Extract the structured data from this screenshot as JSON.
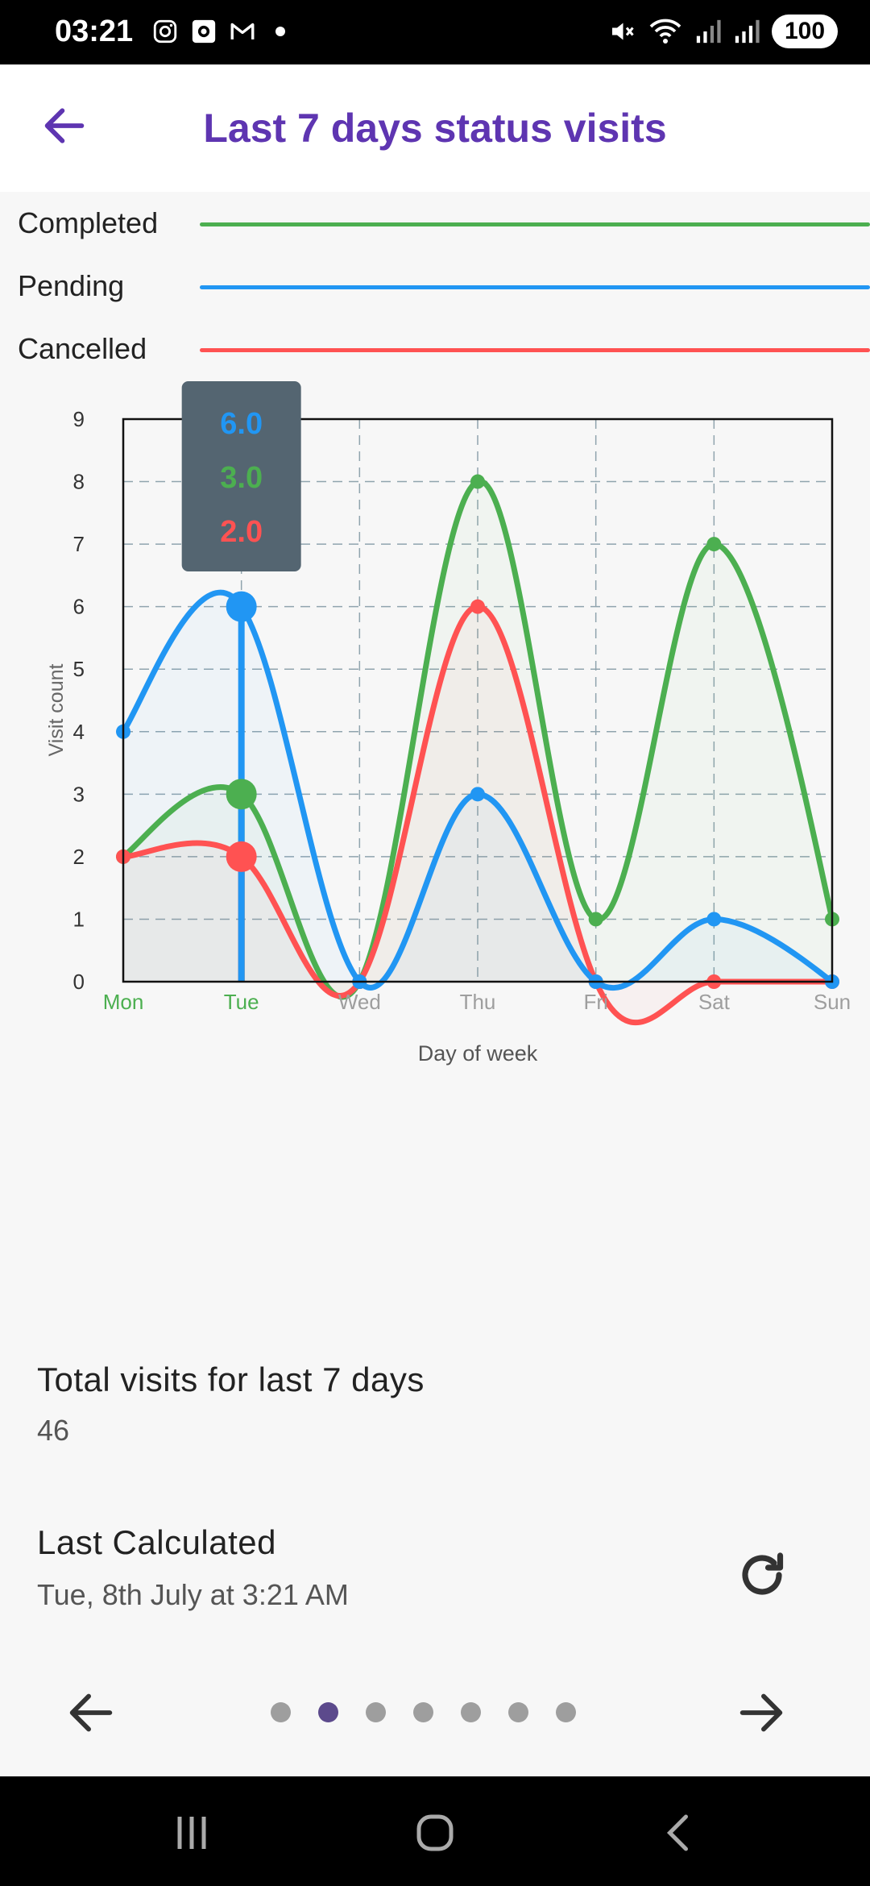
{
  "status_bar": {
    "time": "03:21",
    "battery": "100",
    "icons": [
      "instagram-icon",
      "focus-icon",
      "gmail-icon",
      "notification-dot-icon",
      "mute-icon",
      "wifi-icon",
      "signal-icon",
      "signal-icon-2",
      "battery-icon"
    ]
  },
  "app_bar": {
    "title": "Last 7 days status visits",
    "back_icon": "arrow-back-icon"
  },
  "legend": [
    {
      "label": "Completed",
      "color": "#4caf50"
    },
    {
      "label": "Pending",
      "color": "#2196f3"
    },
    {
      "label": "Cancelled",
      "color": "#ff5252"
    }
  ],
  "chart_data": {
    "type": "line",
    "categories": [
      "Mon",
      "Tue",
      "Wed",
      "Thu",
      "Fri",
      "Sat",
      "Sun"
    ],
    "series": [
      {
        "name": "Completed",
        "color": "#4caf50",
        "values": [
          2,
          3,
          0,
          8,
          1,
          7,
          1
        ]
      },
      {
        "name": "Pending",
        "color": "#2196f3",
        "values": [
          4,
          6,
          0,
          3,
          0,
          1,
          0
        ]
      },
      {
        "name": "Cancelled",
        "color": "#ff5252",
        "values": [
          2,
          2,
          0,
          6,
          0,
          0,
          0
        ]
      }
    ],
    "xlabel": "Day of week",
    "ylabel": "Visit count",
    "ylim": [
      0,
      9
    ],
    "yticks": [
      "0",
      "1",
      "2",
      "3",
      "4",
      "5",
      "6",
      "7",
      "8",
      "9"
    ],
    "grid": true,
    "selected_category": "Tue",
    "tooltip": [
      {
        "text": "6.0",
        "color": "#2196f3"
      },
      {
        "text": "3.0",
        "color": "#4caf50"
      },
      {
        "text": "2.0",
        "color": "#ff5252"
      }
    ]
  },
  "summary": {
    "total_title": "Total visits for last 7 days",
    "total_value": "46",
    "calc_title": "Last Calculated",
    "calc_value": "Tue, 8th July at 3:21 AM",
    "refresh_icon": "refresh-icon"
  },
  "pager": {
    "pages": 7,
    "current": 2,
    "prev_icon": "arrow-left-icon",
    "next_icon": "arrow-right-icon"
  },
  "nav_bar": {
    "icons": [
      "recents-icon",
      "home-icon",
      "back-icon"
    ]
  }
}
